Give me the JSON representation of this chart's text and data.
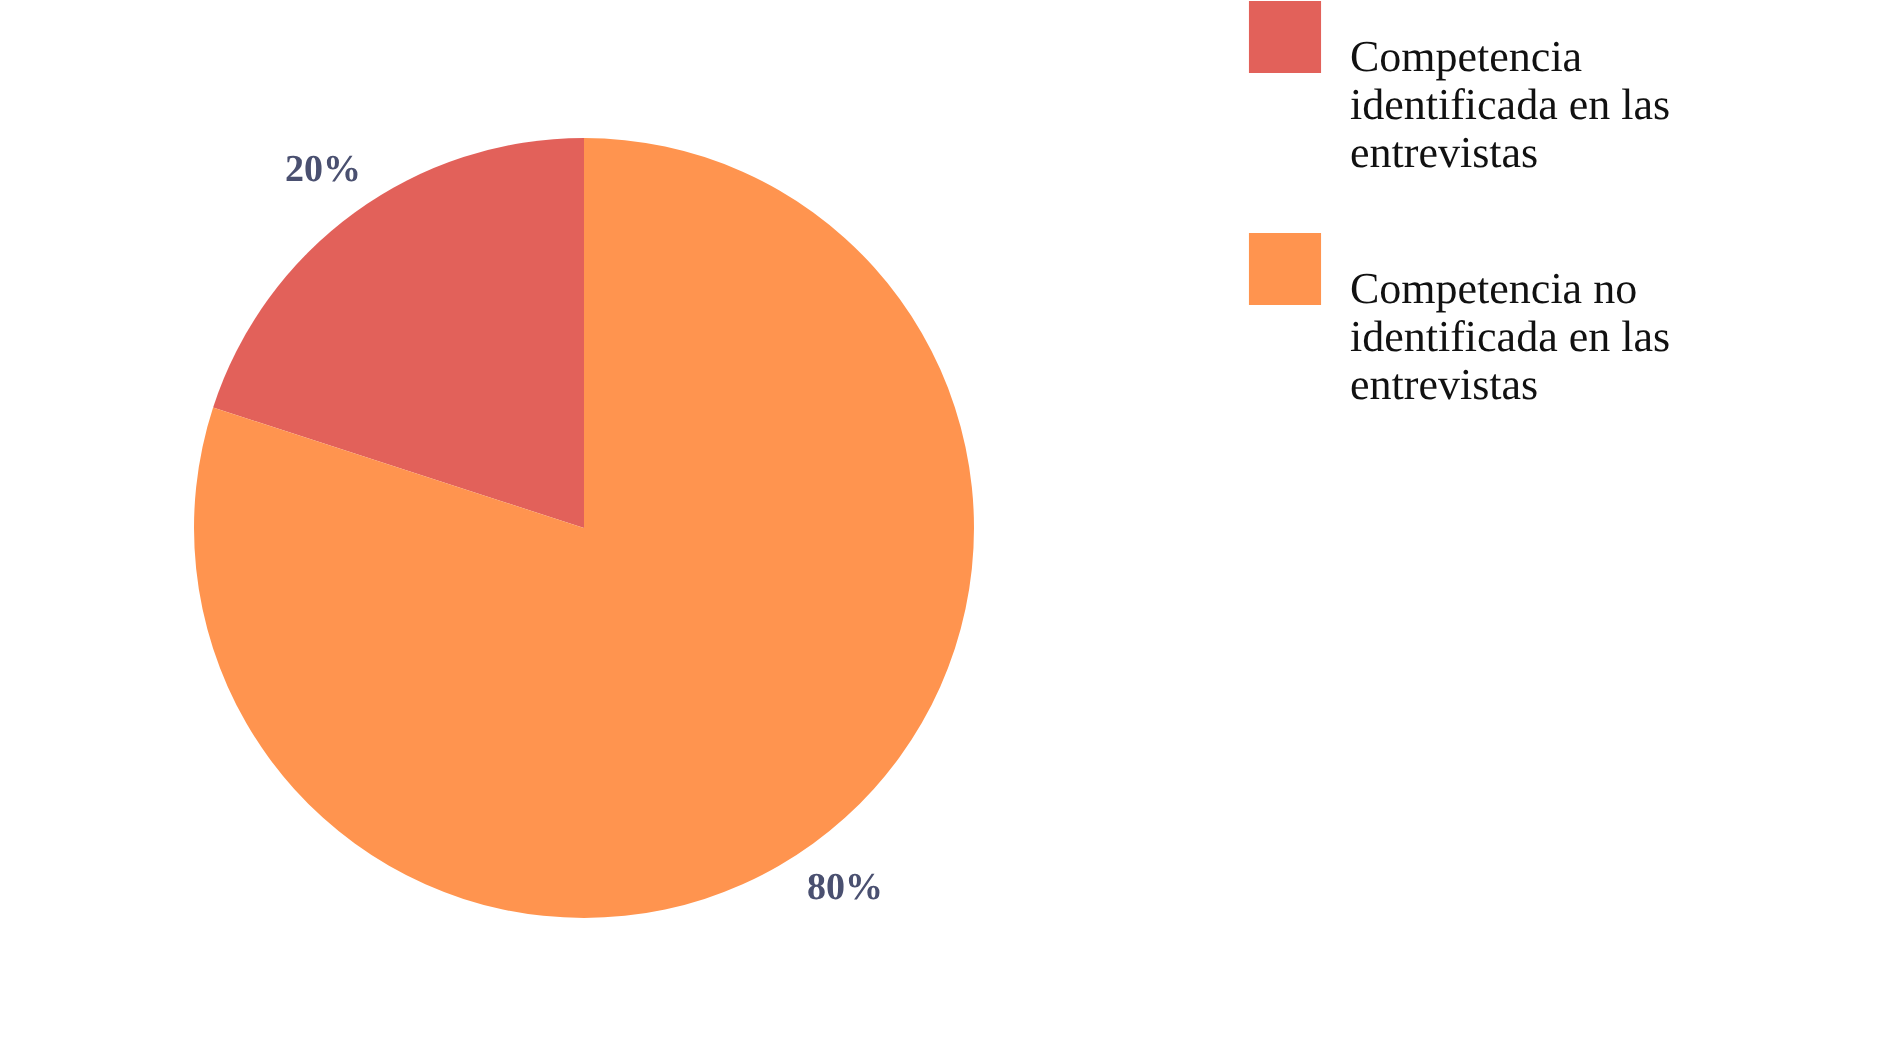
{
  "chart_data": {
    "type": "pie",
    "categories": [
      "Competencia identificada en las entrevistas",
      "Competencia no identificada en las entrevistas"
    ],
    "values": [
      20,
      80
    ],
    "colors": [
      "#e2615a",
      "#ff944f"
    ],
    "value_labels": [
      "20%",
      "80%"
    ],
    "legend": "right"
  }
}
